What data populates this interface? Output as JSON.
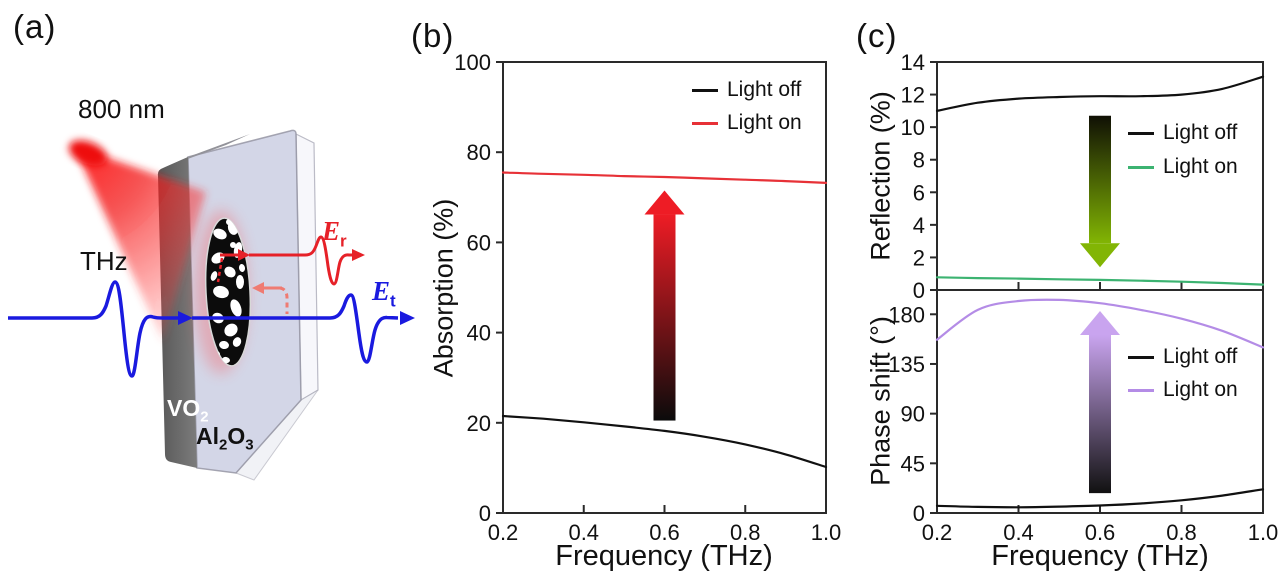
{
  "figure": {
    "panel_a": {
      "label": "(a)",
      "pump_wavelength": "800 nm",
      "incident_wave": "THz",
      "film": {
        "text": "VO",
        "sub": "2"
      },
      "substrate": {
        "p1": "Al",
        "s1": "2",
        "p2": "O",
        "s2": "3"
      },
      "reflected_field": {
        "base": "E",
        "sub": "r"
      },
      "transmitted_field": {
        "base": "E",
        "sub": "t"
      },
      "colors": {
        "thz_beam": "#1a1adf",
        "pump_beam": "#e62128",
        "reflected_pulse": "#e62128",
        "echo_pulse": "#ef7b72",
        "vo2_layer": "#6a6a6a",
        "substrate_face": "#c7cbe0"
      }
    },
    "panel_b": {
      "label": "(b)"
    },
    "panel_c": {
      "label": "(c)"
    }
  },
  "chart_data": [
    {
      "id": "absorption",
      "panel": "(b)",
      "type": "line",
      "xlabel": "Frequency (THz)",
      "ylabel": "Absorption (%)",
      "xlim": [
        0.2,
        1.0
      ],
      "ylim": [
        0,
        100
      ],
      "xticks": [
        0.2,
        0.4,
        0.6,
        0.8,
        1.0
      ],
      "xtick_labels": [
        "0.2",
        "0.4",
        "0.6",
        "0.8",
        "1.0"
      ],
      "yticks": [
        0,
        20,
        40,
        60,
        80,
        100
      ],
      "grid": false,
      "legend_position": "top-right",
      "x": [
        0.2,
        0.3,
        0.4,
        0.5,
        0.6,
        0.7,
        0.8,
        0.9,
        1.0
      ],
      "series": [
        {
          "name": "Light off",
          "color": "#111111",
          "values": [
            21.5,
            20.9,
            20.1,
            19.2,
            18.2,
            16.9,
            15.2,
            13.0,
            10.2
          ]
        },
        {
          "name": "Light on",
          "color": "#e73137",
          "values": [
            75.5,
            75.2,
            75.0,
            74.7,
            74.5,
            74.2,
            73.9,
            73.6,
            73.2
          ]
        }
      ],
      "annotation_arrow": {
        "direction": "up",
        "x": 0.6,
        "from": 20.5,
        "to": 71.5,
        "color_start": "#0b0b0b",
        "color_end": "#ee1c25"
      }
    },
    {
      "id": "reflection",
      "panel": "(c)",
      "type": "line",
      "xlabel": "",
      "ylabel": "Reflection (%)",
      "xlim": [
        0.2,
        1.0
      ],
      "ylim": [
        0,
        14
      ],
      "xticks": [
        0.2,
        0.4,
        0.6,
        0.8,
        1.0
      ],
      "xtick_labels": [],
      "yticks": [
        0,
        2,
        4,
        6,
        8,
        10,
        12,
        14
      ],
      "grid": false,
      "legend_position": "middle-right",
      "x": [
        0.2,
        0.3,
        0.4,
        0.5,
        0.6,
        0.7,
        0.8,
        0.9,
        1.0
      ],
      "series": [
        {
          "name": "Light off",
          "color": "#111111",
          "values": [
            11.0,
            11.5,
            11.75,
            11.85,
            11.9,
            11.9,
            12.0,
            12.35,
            13.1
          ]
        },
        {
          "name": "Light on",
          "color": "#3cb371",
          "values": [
            0.78,
            0.73,
            0.7,
            0.66,
            0.62,
            0.57,
            0.51,
            0.43,
            0.33
          ]
        }
      ],
      "annotation_arrow": {
        "direction": "down",
        "x": 0.6,
        "from": 10.7,
        "to": 1.4,
        "color_start": "#101005",
        "color_end": "#82b504"
      }
    },
    {
      "id": "phase_shift",
      "panel": "(c)",
      "type": "line",
      "xlabel": "Frequency (THz)",
      "ylabel": "Phase shift (°)",
      "xlim": [
        0.2,
        1.0
      ],
      "ylim": [
        0,
        202
      ],
      "xticks": [
        0.2,
        0.4,
        0.6,
        0.8,
        1.0
      ],
      "xtick_labels": [
        "0.2",
        "0.4",
        "0.6",
        "0.8",
        "1.0"
      ],
      "yticks": [
        0,
        45,
        90,
        135,
        180
      ],
      "grid": false,
      "legend_position": "middle-right",
      "x": [
        0.2,
        0.3,
        0.4,
        0.5,
        0.6,
        0.7,
        0.8,
        0.9,
        1.0
      ],
      "series": [
        {
          "name": "Light off",
          "color": "#111111",
          "values": [
            6.5,
            5.5,
            5.2,
            5.8,
            6.8,
            8.6,
            11.5,
            15.8,
            21.5
          ]
        },
        {
          "name": "Light on",
          "color": "#b48ce6",
          "values": [
            157,
            184,
            192,
            193,
            190,
            184,
            176,
            165,
            150
          ]
        }
      ],
      "annotation_arrow": {
        "direction": "up",
        "x": 0.6,
        "from": 18,
        "to": 183,
        "color_start": "#111111",
        "color_end": "#c9a4ef"
      }
    }
  ]
}
